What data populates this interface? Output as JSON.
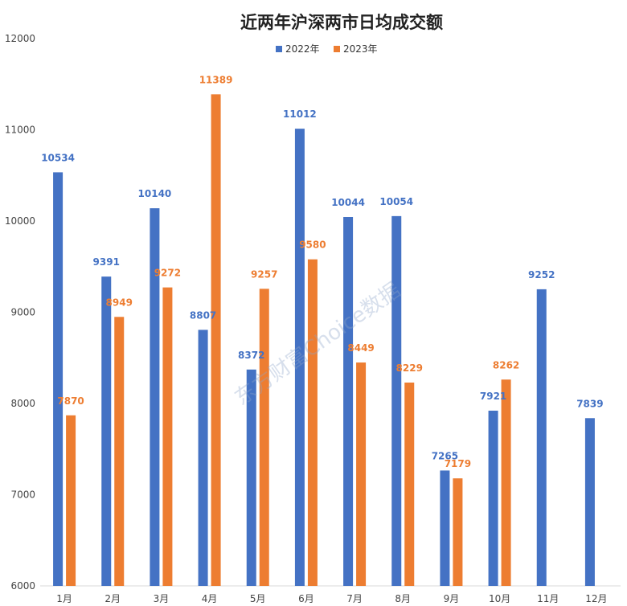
{
  "chart_data": {
    "type": "bar",
    "title": "近两年沪深两市日均成交额",
    "categories": [
      "1月",
      "2月",
      "3月",
      "4月",
      "5月",
      "6月",
      "7月",
      "8月",
      "9月",
      "10月",
      "11月",
      "12月"
    ],
    "series": [
      {
        "name": "2022年",
        "color": "#4472c4",
        "values": [
          10534,
          9391,
          10140,
          8807,
          8372,
          11012,
          10044,
          10054,
          7265,
          7921,
          9252,
          7839
        ]
      },
      {
        "name": "2023年",
        "color": "#ed7d31",
        "values": [
          7870,
          8949,
          9272,
          11389,
          9257,
          9580,
          8449,
          8229,
          7179,
          8262,
          null,
          null
        ]
      }
    ],
    "yticks": [
      6000,
      7000,
      8000,
      9000,
      10000,
      11000,
      12000
    ],
    "ylim": [
      6000,
      12000
    ],
    "legend": "top-center",
    "grid": false,
    "watermark": "东方财富Choice数据"
  }
}
